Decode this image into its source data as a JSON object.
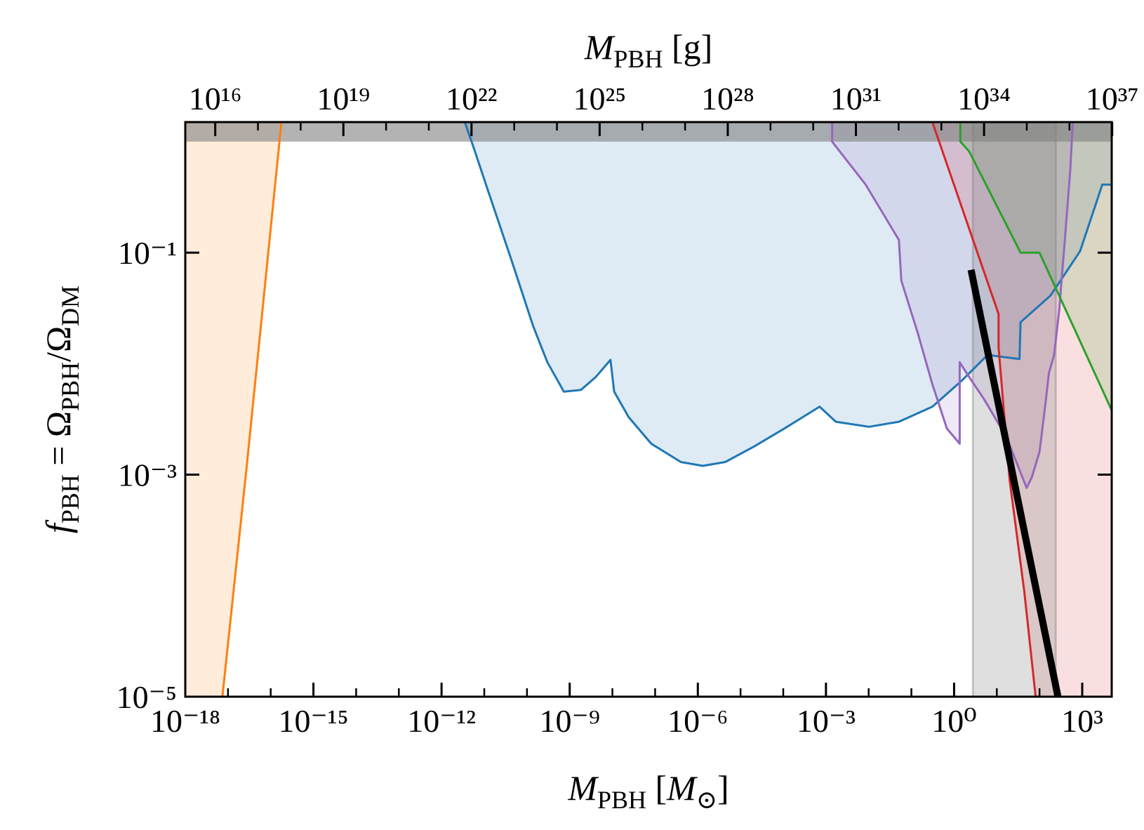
{
  "chart_data": {
    "type": "line",
    "xlog": true,
    "ylog": true,
    "xlim": [
      1e-18,
      4900
    ],
    "ylim": [
      1e-05,
      1.5
    ],
    "xticks": [
      {
        "value": 1e-18,
        "label": "10⁻¹⁸"
      },
      {
        "value": 1e-15,
        "label": "10⁻¹⁵"
      },
      {
        "value": 1e-12,
        "label": "10⁻¹²"
      },
      {
        "value": 1e-09,
        "label": "10⁻⁹"
      },
      {
        "value": 1e-06,
        "label": "10⁻⁶"
      },
      {
        "value": 0.001,
        "label": "10⁻³"
      },
      {
        "value": 1,
        "label": "10⁰"
      },
      {
        "value": 1000,
        "label": "10³"
      }
    ],
    "xminorticks": [
      1e-17,
      1e-16,
      1e-14,
      1e-13,
      1e-11,
      1e-10,
      1e-08,
      1e-07,
      1e-05,
      0.0001,
      0.01,
      0.1,
      10,
      100
    ],
    "yticks": [
      {
        "value": 1e-05,
        "label": "10⁻⁵"
      },
      {
        "value": 0.001,
        "label": "10⁻³"
      },
      {
        "value": 0.1,
        "label": "10⁻¹"
      }
    ],
    "x2lim": [
      1989000000000000.0,
      9.75e+36
    ],
    "x2ticks": [
      {
        "value": 1e+16,
        "label": "10¹⁶"
      },
      {
        "value": 1e+19,
        "label": "10¹⁹"
      },
      {
        "value": 1e+22,
        "label": "10²²"
      },
      {
        "value": 1e+25,
        "label": "10²⁵"
      },
      {
        "value": 1e+28,
        "label": "10²⁸"
      },
      {
        "value": 1e+31,
        "label": "10³¹"
      },
      {
        "value": 1e+34,
        "label": "10³⁴"
      },
      {
        "value": 1e+37,
        "label": "10³⁷"
      }
    ],
    "x2minorticks": [
      1e+17,
      1e+18,
      1e+20,
      1e+21,
      1e+23,
      1e+24,
      1e+26,
      1e+27,
      1e+29,
      1e+30,
      1e+32,
      1e+33,
      1e+35,
      1e+36
    ],
    "xlabel": [
      {
        "text": "M",
        "italic": true
      },
      {
        "text": "PBH",
        "sub": true
      },
      {
        "text": " ["
      },
      {
        "text": "M",
        "italic": true
      },
      {
        "text": "⊙",
        "sub": true
      },
      {
        "text": "]"
      }
    ],
    "x2label": [
      {
        "text": "M",
        "italic": true
      },
      {
        "text": "PBH",
        "sub": true
      },
      {
        "text": " [g]"
      }
    ],
    "ylabel": [
      {
        "text": "f",
        "italic": true
      },
      {
        "text": "PBH",
        "sub": true
      },
      {
        "text": " = Ω"
      },
      {
        "text": "PBH",
        "sub": true
      },
      {
        "text": "/Ω"
      },
      {
        "text": "DM",
        "sub": true
      }
    ],
    "series": [
      {
        "color": "#ff7f0e",
        "fill": "left",
        "x": [
          7.4e-18,
          2.75e-17,
          1.78e-16
        ],
        "values": [
          1e-05,
          0.0012,
          1.5
        ]
      },
      {
        "color": "#1f77b4",
        "fill": "above",
        "x": [
          3.5e-12,
          5.6e-12,
          1.26e-11,
          4.2e-11,
          1.38e-10,
          3e-10,
          7.3e-10,
          1.83e-09,
          4.1e-09,
          9e-09,
          1.1e-08,
          2.4e-08,
          8.1e-08,
          4e-07,
          1.3e-06,
          4.4e-06,
          2.1e-05,
          0.000105,
          0.00071,
          0.0017,
          0.0102,
          0.051,
          0.31,
          1.5,
          6.1,
          13.5,
          34,
          36,
          180,
          890,
          2950,
          4900
        ],
        "values": [
          1.5,
          0.89,
          0.35,
          0.089,
          0.022,
          0.0103,
          0.0056,
          0.0058,
          0.0076,
          0.0108,
          0.0056,
          0.0033,
          0.0019,
          0.0013,
          0.0012,
          0.0013,
          0.0018,
          0.0026,
          0.0041,
          0.003,
          0.0027,
          0.003,
          0.0041,
          0.007,
          0.012,
          0.0115,
          0.011,
          0.0236,
          0.041,
          0.103,
          0.41,
          0.41
        ]
      },
      {
        "color": "#9467bd",
        "fill": "above",
        "x": [
          0.0014,
          0.0014,
          0.0085,
          0.051,
          0.058,
          0.14,
          0.31,
          0.68,
          1.35,
          1.35,
          2.24,
          5.0,
          16.6,
          50,
          66,
          100,
          135,
          166,
          219,
          288,
          398,
          525,
          600
        ],
        "values": [
          1.5,
          1.0,
          0.41,
          0.13,
          0.056,
          0.019,
          0.0065,
          0.0026,
          0.0019,
          0.0103,
          0.0076,
          0.0048,
          0.0022,
          0.00076,
          0.00095,
          0.0016,
          0.0041,
          0.0082,
          0.012,
          0.03,
          0.14,
          0.56,
          1.5
        ]
      },
      {
        "color": "#d62728",
        "fill": "right",
        "x": [
          0.31,
          11,
          11,
          20,
          44,
          81
        ],
        "values": [
          1.5,
          0.028,
          0.014,
          0.00089,
          8.9e-05,
          1e-05
        ]
      },
      {
        "color": "#2ca02c",
        "fill": "right",
        "x": [
          1.4,
          1.4,
          2.24,
          36,
          100,
          4900
        ],
        "values": [
          1.5,
          1.0,
          0.82,
          0.1,
          0.1,
          0.0038
        ]
      },
      {
        "color": "#000000",
        "fill": "none",
        "x": [
          2.5,
          270
        ],
        "values": [
          0.07,
          1e-05
        ]
      }
    ],
    "xbands": [
      {
        "xlim": [
          2.75,
          240
        ],
        "color": "#808080"
      }
    ],
    "ybands": [
      {
        "ylim": [
          1,
          1.5
        ],
        "color": "#808080"
      }
    ]
  }
}
